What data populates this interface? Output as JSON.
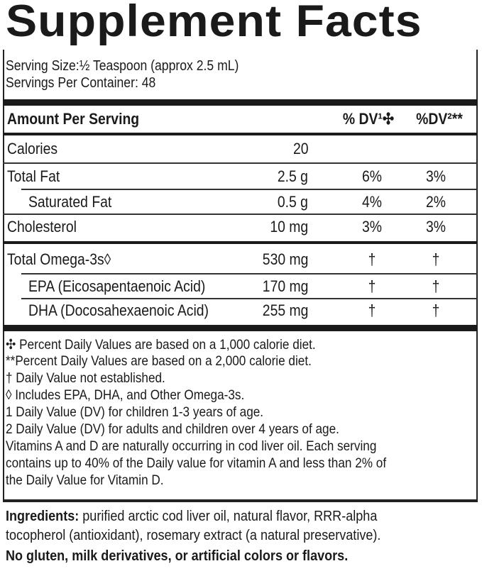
{
  "title": "Supplement Facts",
  "serving_size": "Serving Size:½ Teaspoon (approx 2.5 mL)",
  "servings_per_container": "Servings Per Container: 48",
  "header": {
    "amount": "Amount Per Serving",
    "dv1": "% DV¹✣",
    "dv2": "%DV²**"
  },
  "rows": [
    {
      "label": "Calories",
      "amount": "20",
      "dv1": "",
      "dv2": ""
    },
    {
      "label": "Total Fat",
      "amount": "2.5 g",
      "dv1": "6%",
      "dv2": "3%"
    },
    {
      "label": "Saturated Fat",
      "amount": "0.5 g",
      "dv1": "4%",
      "dv2": "2%"
    },
    {
      "label": "Cholesterol",
      "amount": "10 mg",
      "dv1": "3%",
      "dv2": "3%"
    },
    {
      "label": "Total Omega-3s◊",
      "amount": "530 mg",
      "dv1": "†",
      "dv2": "†"
    },
    {
      "label": "EPA (Eicosapentaenoic Acid)",
      "amount": "170 mg",
      "dv1": "†",
      "dv2": "†"
    },
    {
      "label": "DHA (Docosahexaenoic Acid)",
      "amount": "255 mg",
      "dv1": "†",
      "dv2": "†"
    }
  ],
  "footnotes": [
    "✣ Percent Daily Values are based on a 1,000 calorie diet.",
    "**Percent Daily Values are based on a 2,000 calorie diet.",
    "† Daily Value not established.",
    "◊ Includes EPA, DHA, and Other Omega-3s.",
    "1 Daily Value (DV) for children 1-3 years of age.",
    "2 Daily Value (DV) for adults and children over 4 years of age.",
    "Vitamins A and D are naturally occurring in cod liver oil. Each serving",
    "contains up to 40% of the Daily value for vitamin A and less than 2% of",
    "the Daily Value for Vitamin D."
  ],
  "ingredients": {
    "label": "Ingredients:",
    "line1": " purified arctic cod liver oil, natural flavor, RRR-alpha",
    "line2": "tocopherol (antioxidant), rosemary extract (a natural preservative).",
    "line3": "No gluten, milk derivatives, or artificial colors or flavors."
  }
}
